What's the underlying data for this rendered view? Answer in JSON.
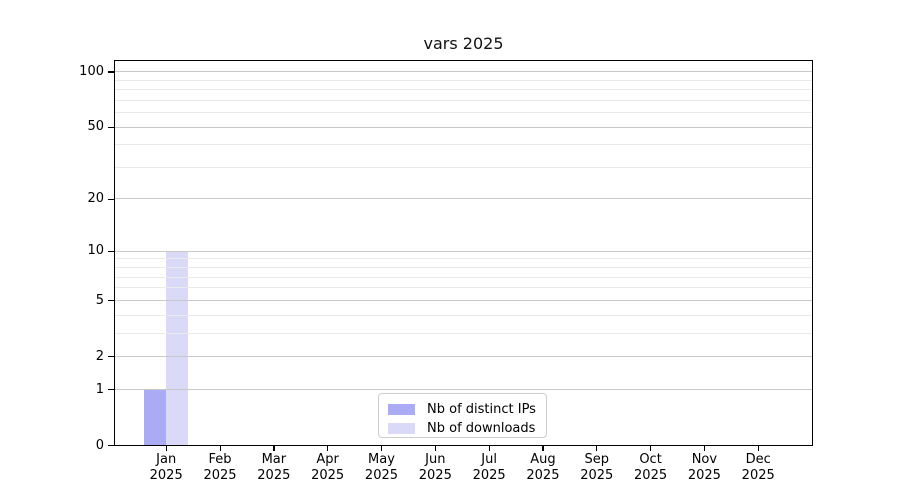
{
  "title": "vars 2025",
  "chart_data": {
    "type": "bar",
    "title": "vars 2025",
    "categories": [
      "Jan",
      "Feb",
      "Mar",
      "Apr",
      "May",
      "Jun",
      "Jul",
      "Aug",
      "Sep",
      "Oct",
      "Nov",
      "Dec"
    ],
    "year_label": "2025",
    "x_tick_labels": [
      "Jan 2025",
      "Feb 2025",
      "Mar 2025",
      "Apr 2025",
      "May 2025",
      "Jun 2025",
      "Jul 2025",
      "Aug 2025",
      "Sep 2025",
      "Oct 2025",
      "Nov 2025",
      "Dec 2025"
    ],
    "series": [
      {
        "name": "Nb of distinct IPs",
        "color": "#aaaaf5",
        "values": [
          1,
          0,
          0,
          0,
          0,
          0,
          0,
          0,
          0,
          0,
          0,
          0
        ]
      },
      {
        "name": "Nb of downloads",
        "color": "#dadaf8",
        "values": [
          10,
          0,
          0,
          0,
          0,
          0,
          0,
          0,
          0,
          0,
          0,
          0
        ]
      }
    ],
    "y_ticks": [
      0,
      1,
      2,
      5,
      10,
      20,
      50,
      100
    ],
    "minor_gridlines": [
      3,
      4,
      6,
      7,
      8,
      9,
      30,
      40,
      60,
      70,
      80,
      90
    ],
    "ylim": [
      0,
      100
    ],
    "scale": "log1p",
    "grid": true,
    "legend_position": "lower center",
    "colors": {
      "axis": "#000000",
      "grid_major": "#c9c9c9",
      "grid_minor": "#eaeaea",
      "background": "#ffffff"
    }
  }
}
